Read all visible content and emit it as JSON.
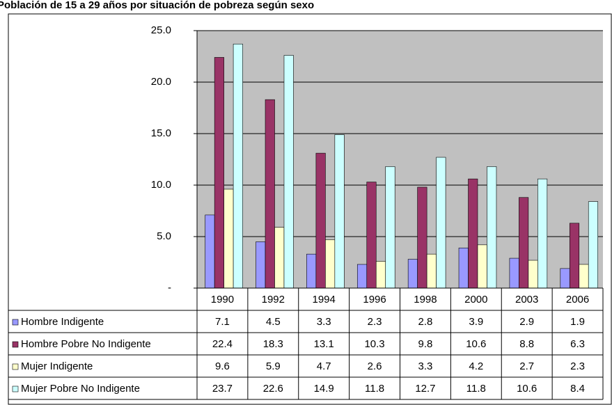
{
  "chart_data": {
    "type": "bar",
    "title": "Población de 15 a 29 años por situación de pobreza según sexo",
    "categories": [
      "1990",
      "1992",
      "1994",
      "1996",
      "1998",
      "2000",
      "2003",
      "2006"
    ],
    "series": [
      {
        "name": "Hombre Indigente",
        "color": "#9999ff",
        "values": [
          7.1,
          4.5,
          3.3,
          2.3,
          2.8,
          3.9,
          2.9,
          1.9
        ]
      },
      {
        "name": "Hombre Pobre No Indigente",
        "color": "#993366",
        "values": [
          22.4,
          18.3,
          13.1,
          10.3,
          9.8,
          10.6,
          8.8,
          6.3
        ]
      },
      {
        "name": "Mujer Indigente",
        "color": "#ffffcc",
        "values": [
          9.6,
          5.9,
          4.7,
          2.6,
          3.3,
          4.2,
          2.7,
          2.3
        ]
      },
      {
        "name": "Mujer Pobre No Indigente",
        "color": "#ccffff",
        "values": [
          23.7,
          22.6,
          14.9,
          11.8,
          12.7,
          11.8,
          10.6,
          8.4
        ]
      }
    ],
    "ylim": [
      0,
      25
    ],
    "yticks": [
      {
        "value": 0,
        "label": "-"
      },
      {
        "value": 5,
        "label": "5.0"
      },
      {
        "value": 10,
        "label": "10.0"
      },
      {
        "value": 15,
        "label": "15.0"
      },
      {
        "value": 20,
        "label": "20.0"
      },
      {
        "value": 25,
        "label": "25.0"
      }
    ],
    "grid": true
  }
}
